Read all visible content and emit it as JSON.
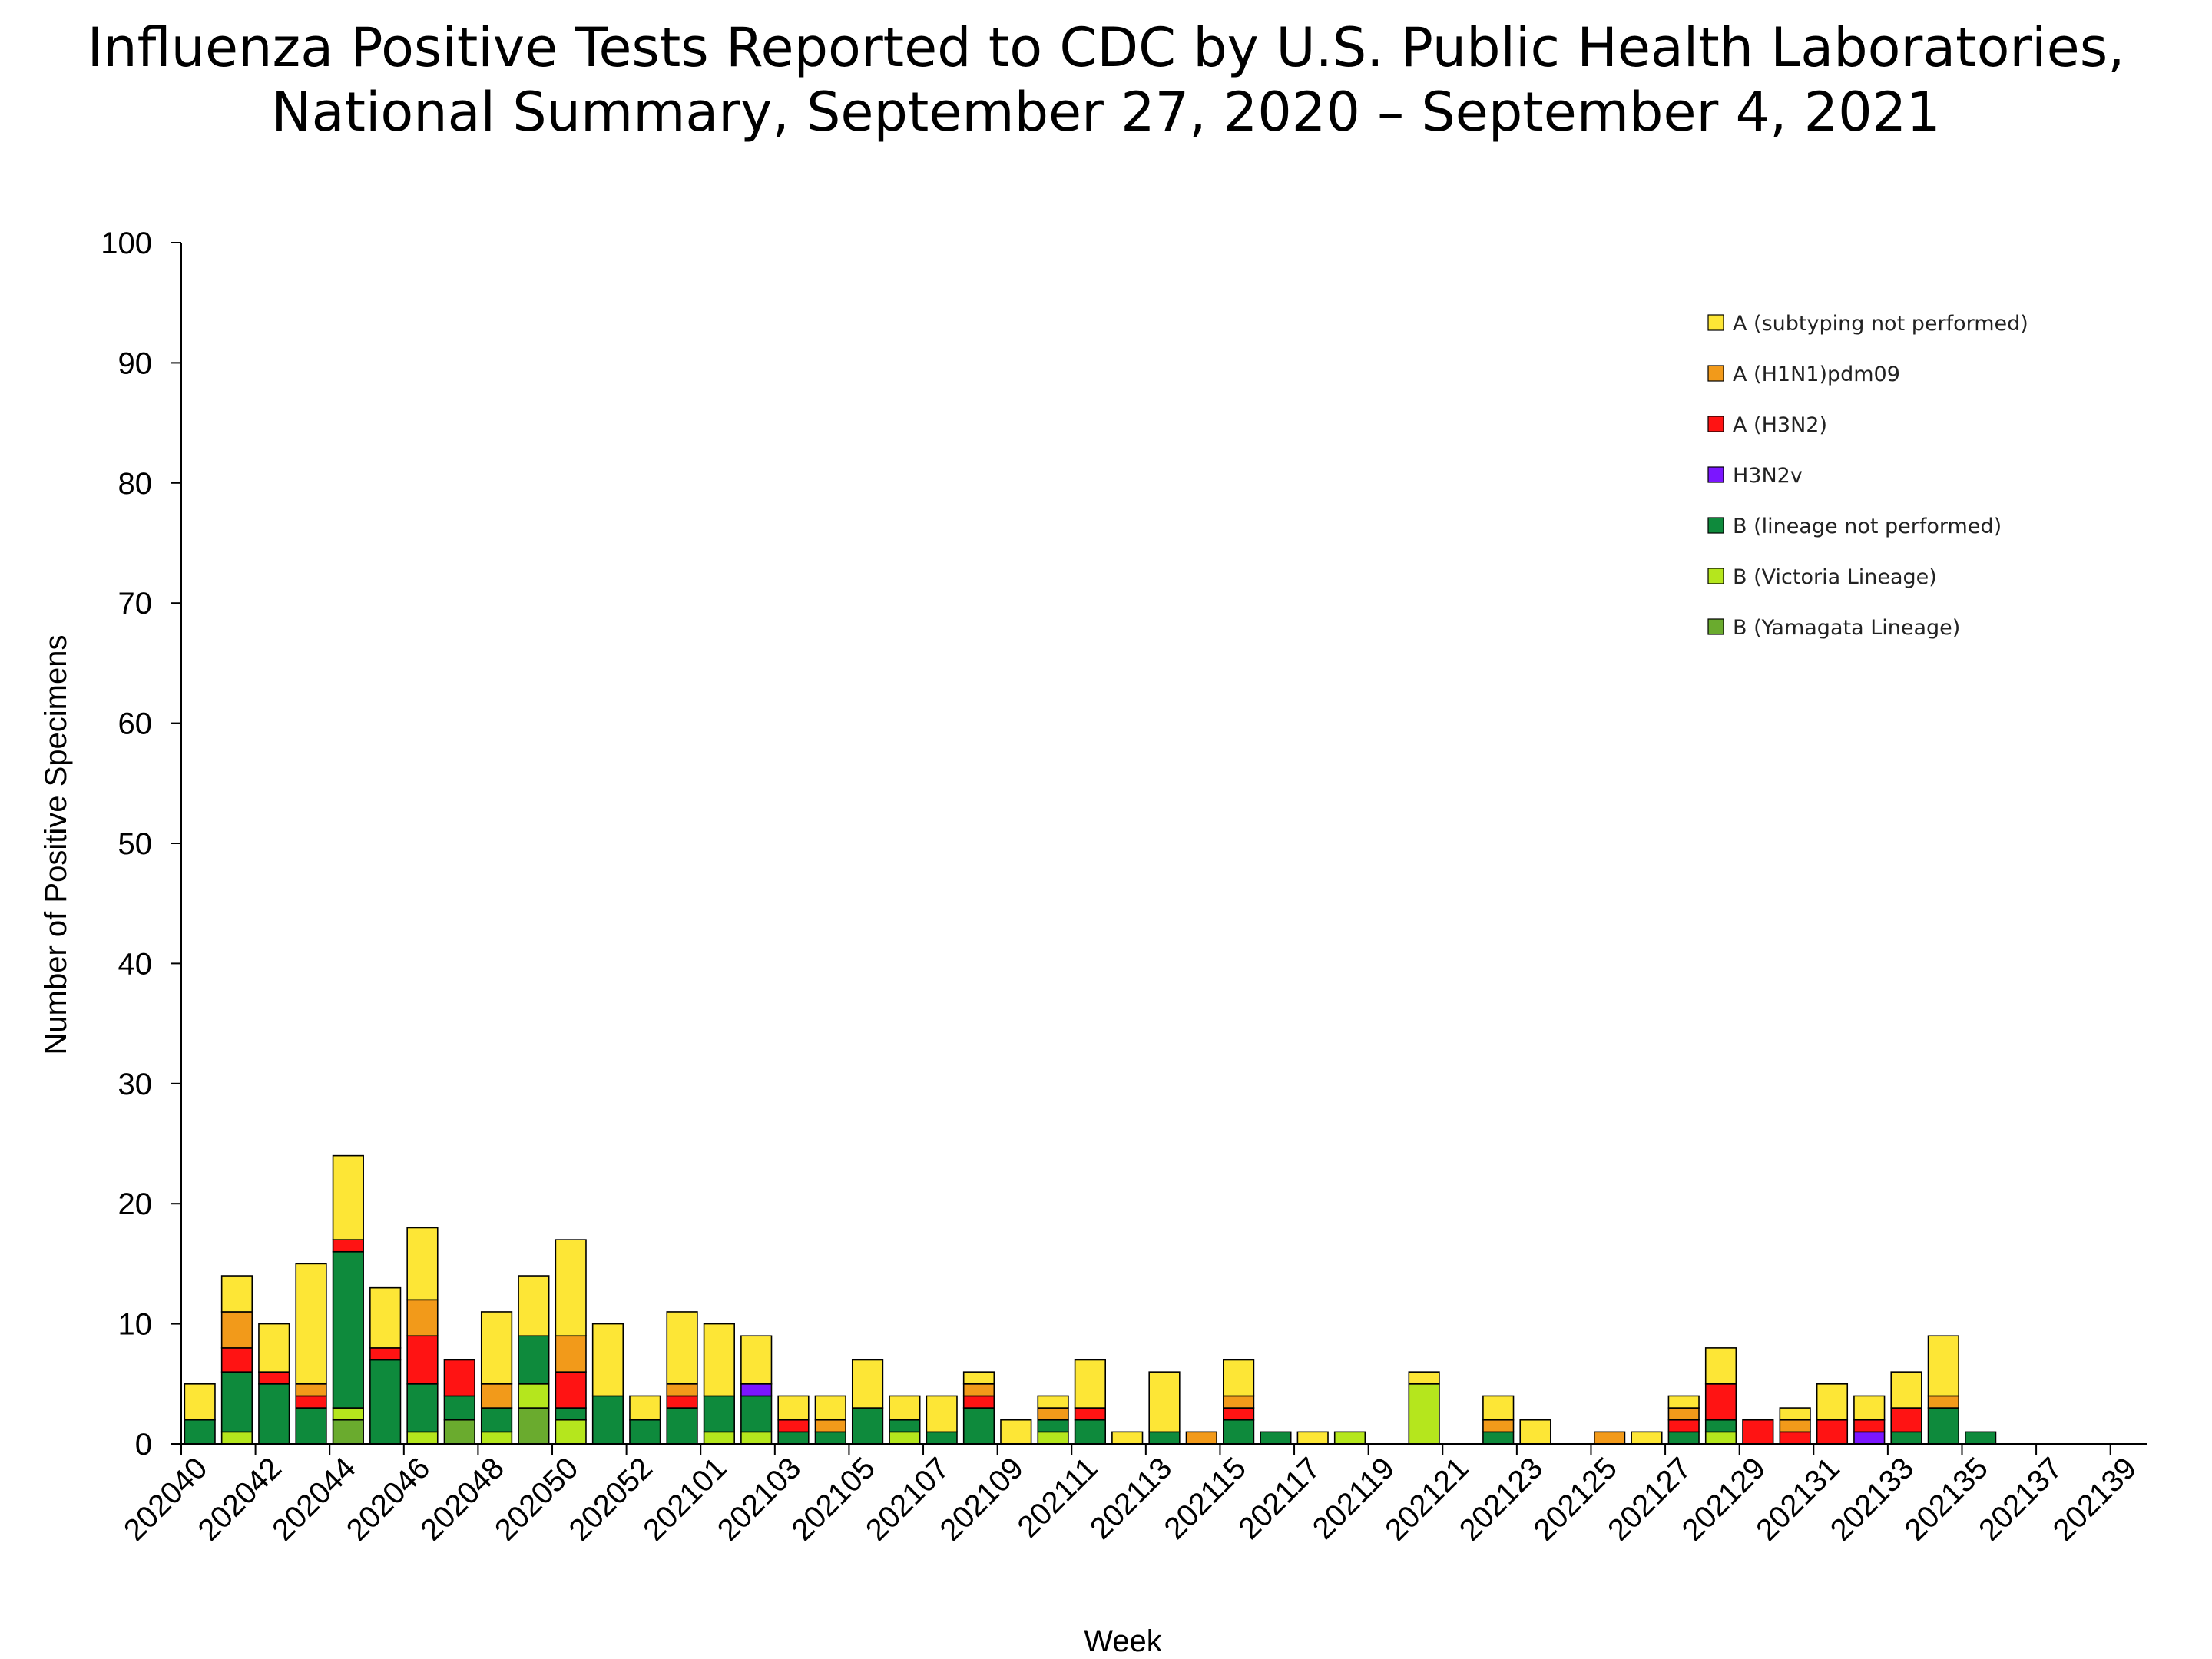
{
  "chart_data": {
    "type": "bar",
    "stacked": true,
    "title_lines": [
      "Influenza Positive Tests Reported to CDC by U.S. Public Health Laboratories,",
      "National Summary, September 27, 2020 – September 4, 2021"
    ],
    "xlabel": "Week",
    "ylabel": "Number of Positive Specimens",
    "ylim": [
      0,
      100
    ],
    "yticks": [
      0,
      10,
      20,
      30,
      40,
      50,
      60,
      70,
      80,
      90,
      100
    ],
    "categories": [
      "202040",
      "202041",
      "202042",
      "202043",
      "202044",
      "202045",
      "202046",
      "202047",
      "202048",
      "202049",
      "202050",
      "202051",
      "202052",
      "202053",
      "202101",
      "202102",
      "202103",
      "202104",
      "202105",
      "202106",
      "202107",
      "202108",
      "202109",
      "202110",
      "202111",
      "202112",
      "202113",
      "202114",
      "202115",
      "202116",
      "202117",
      "202118",
      "202119",
      "202120",
      "202121",
      "202122",
      "202123",
      "202124",
      "202125",
      "202126",
      "202127",
      "202128",
      "202129",
      "202130",
      "202131",
      "202132",
      "202133",
      "202134",
      "202135",
      "202136",
      "202137",
      "202138",
      "202139"
    ],
    "tick_labels": [
      "202040",
      "202042",
      "202044",
      "202046",
      "202048",
      "202050",
      "202052",
      "202101",
      "202103",
      "202105",
      "202107",
      "202109",
      "202111",
      "202113",
      "202115",
      "202117",
      "202119",
      "202121",
      "202123",
      "202125",
      "202127",
      "202129",
      "202131",
      "202133",
      "202135",
      "202137",
      "202139"
    ],
    "legend_position": "top-right",
    "grid": false,
    "series": [
      {
        "name": "B (Yamagata Lineage)",
        "color": "#6aab2e",
        "values": [
          0,
          0,
          0,
          0,
          2,
          0,
          0,
          2,
          0,
          3,
          0,
          0,
          0,
          0,
          0,
          0,
          0,
          0,
          0,
          0,
          0,
          0,
          0,
          0,
          0,
          0,
          0,
          0,
          0,
          0,
          0,
          0,
          0,
          0,
          0,
          0,
          0,
          0,
          0,
          0,
          0,
          0,
          0,
          0,
          0,
          0,
          0,
          0,
          0,
          0,
          0,
          0,
          0
        ]
      },
      {
        "name": "B (Victoria Lineage)",
        "color": "#b5e61d",
        "values": [
          0,
          1,
          0,
          0,
          1,
          0,
          1,
          0,
          1,
          2,
          2,
          0,
          0,
          0,
          1,
          1,
          0,
          0,
          0,
          1,
          0,
          0,
          0,
          1,
          0,
          0,
          0,
          0,
          0,
          0,
          0,
          1,
          0,
          5,
          0,
          0,
          0,
          0,
          0,
          0,
          0,
          1,
          0,
          0,
          0,
          0,
          0,
          0,
          0,
          0,
          0,
          0,
          0
        ]
      },
      {
        "name": "B (lineage not performed)",
        "color": "#0e8a3c",
        "values": [
          2,
          5,
          5,
          3,
          13,
          7,
          4,
          2,
          2,
          4,
          1,
          4,
          2,
          3,
          3,
          3,
          1,
          1,
          3,
          1,
          1,
          3,
          0,
          1,
          2,
          0,
          1,
          0,
          2,
          1,
          0,
          0,
          0,
          0,
          0,
          1,
          0,
          0,
          0,
          0,
          1,
          1,
          0,
          0,
          0,
          0,
          1,
          3,
          1,
          0,
          0,
          0,
          0
        ]
      },
      {
        "name": "H3N2v",
        "color": "#7b16ff",
        "values": [
          0,
          0,
          0,
          0,
          0,
          0,
          0,
          0,
          0,
          0,
          0,
          0,
          0,
          0,
          0,
          1,
          0,
          0,
          0,
          0,
          0,
          0,
          0,
          0,
          0,
          0,
          0,
          0,
          0,
          0,
          0,
          0,
          0,
          0,
          0,
          0,
          0,
          0,
          0,
          0,
          0,
          0,
          0,
          0,
          0,
          1,
          0,
          0,
          0,
          0,
          0,
          0,
          0
        ]
      },
      {
        "name": "A (H3N2)",
        "color": "#ff1313",
        "values": [
          0,
          2,
          1,
          1,
          1,
          1,
          4,
          3,
          0,
          0,
          3,
          0,
          0,
          1,
          0,
          0,
          1,
          0,
          0,
          0,
          0,
          1,
          0,
          0,
          1,
          0,
          0,
          0,
          1,
          0,
          0,
          0,
          0,
          0,
          0,
          0,
          0,
          0,
          0,
          0,
          1,
          3,
          2,
          1,
          2,
          1,
          2,
          0,
          0,
          0,
          0,
          0,
          0
        ]
      },
      {
        "name": "A (H1N1)pdm09",
        "color": "#f29a1a",
        "values": [
          0,
          3,
          0,
          1,
          0,
          0,
          3,
          0,
          2,
          0,
          3,
          0,
          0,
          1,
          0,
          0,
          0,
          1,
          0,
          0,
          0,
          1,
          0,
          1,
          0,
          0,
          0,
          1,
          1,
          0,
          0,
          0,
          0,
          0,
          0,
          1,
          0,
          0,
          1,
          0,
          1,
          0,
          0,
          1,
          0,
          0,
          0,
          1,
          0,
          0,
          0,
          0,
          0
        ]
      },
      {
        "name": "A (subtyping not performed)",
        "color": "#fde636",
        "values": [
          3,
          3,
          4,
          10,
          7,
          5,
          6,
          0,
          6,
          5,
          8,
          6,
          2,
          6,
          6,
          4,
          2,
          2,
          4,
          2,
          3,
          1,
          2,
          1,
          4,
          1,
          5,
          0,
          3,
          0,
          1,
          0,
          0,
          1,
          0,
          2,
          2,
          0,
          0,
          1,
          1,
          3,
          0,
          1,
          3,
          2,
          3,
          5,
          0,
          0,
          0,
          0,
          0
        ]
      }
    ],
    "legend_order": [
      "A (subtyping not performed)",
      "A (H1N1)pdm09",
      "A (H3N2)",
      "H3N2v",
      "B (lineage not performed)",
      "B (Victoria Lineage)",
      "B (Yamagata Lineage)"
    ]
  }
}
